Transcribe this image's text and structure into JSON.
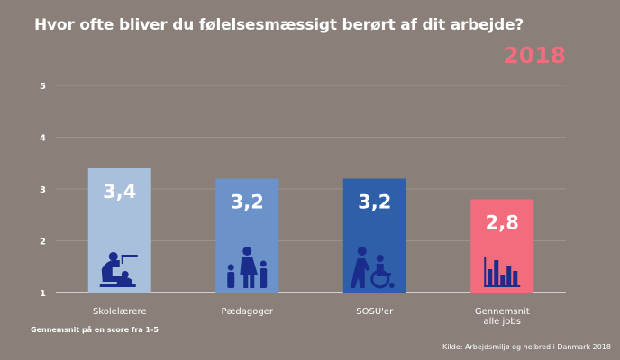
{
  "title": "Hvor ofte bliver du følelsesmæssigt berørt af dit arbejde?",
  "year": "2018",
  "footnote": "Gennemsnit på en score fra 1-5",
  "source": "Kilde: Arbejdsmiljø og helbred i Danmark 2018",
  "colors": {
    "background": "#8a8079",
    "grid": "#a39a93",
    "text": "#ffffff",
    "accent": "#f26c7e",
    "icon": "#1a2c8c"
  },
  "chart_data": {
    "type": "bar",
    "categories": [
      "Skolelærere",
      "Pædagoger",
      "SOSU'er",
      "Gennemsnit alle jobs"
    ],
    "category_lines": [
      [
        "Skolelærere"
      ],
      [
        "Pædagoger"
      ],
      [
        "SOSU'er"
      ],
      [
        "Gennemsnit",
        "alle jobs"
      ]
    ],
    "values": [
      3.4,
      3.2,
      3.2,
      2.8
    ],
    "value_labels": [
      "3,4",
      "3,2",
      "3,2",
      "2,8"
    ],
    "bar_colors": [
      "#a9c0dc",
      "#6b93c9",
      "#2e5fa8",
      "#f26c7e"
    ],
    "icons": [
      "teacher-icon",
      "family-icon",
      "caregiver-wheelchair-icon",
      "bar-chart-icon"
    ],
    "ylim": [
      1,
      5
    ],
    "yticks": [
      1,
      2,
      3,
      4,
      5
    ],
    "grid": true,
    "xlabel": "",
    "ylabel": ""
  }
}
